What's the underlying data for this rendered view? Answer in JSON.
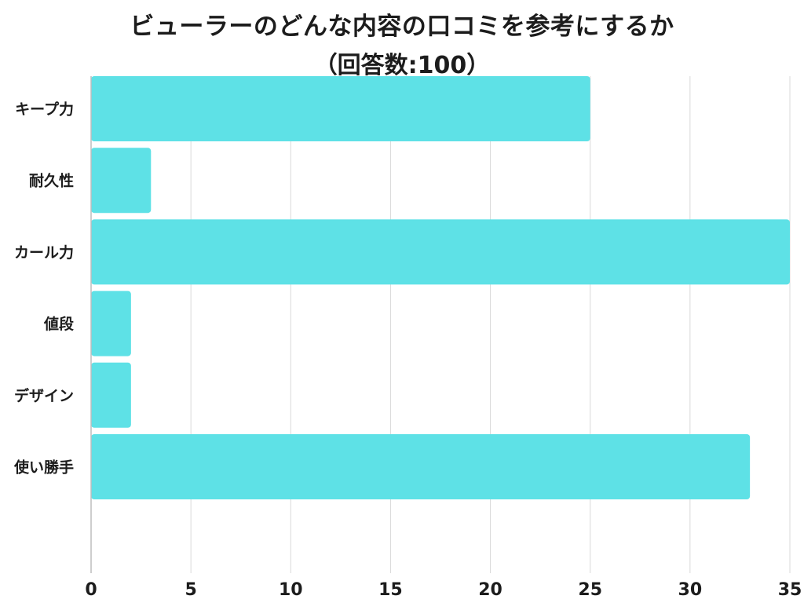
{
  "chart_data": {
    "type": "bar",
    "orientation": "horizontal",
    "title": "ビューラーのどんな内容の口コミを参考にするか",
    "subtitle": "（回答数:100）",
    "categories": [
      "キープ力",
      "耐久性",
      "カール力",
      "値段",
      "デザイン",
      "使い勝手"
    ],
    "values": [
      25,
      3,
      35,
      2,
      2,
      33
    ],
    "xlim": [
      0,
      35
    ],
    "xticks": [
      0,
      5,
      10,
      15,
      20,
      25,
      30,
      35
    ],
    "xlabel": "",
    "ylabel": "",
    "grid": true,
    "bar_color": "#5ee1e6",
    "grid_color": "#d9d9d9",
    "axis_color": "#bdbdbd"
  }
}
